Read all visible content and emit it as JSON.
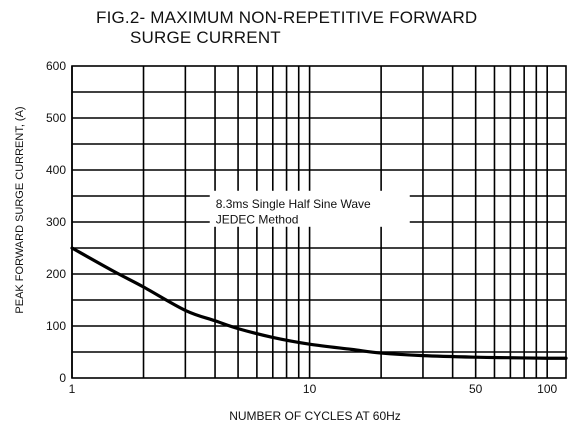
{
  "chart_data": {
    "type": "line",
    "title_line1": "FIG.2- MAXIMUM NON-REPETITIVE FORWARD",
    "title_line2": "SURGE CURRENT",
    "xlabel": "NUMBER OF CYCLES AT 60Hz",
    "ylabel": "PEAK FORWARD SURGE CURRENT, (A)",
    "x_scale": "log",
    "xlim": [
      1,
      120
    ],
    "ylim": [
      0,
      600
    ],
    "x_ticks": [
      1,
      10,
      50,
      100
    ],
    "y_ticks": [
      0,
      100,
      200,
      300,
      400,
      500,
      600
    ],
    "grid": true,
    "annotation_line1": "8.3ms Single Half Sine Wave",
    "annotation_line2": "JEDEC Method",
    "series": [
      {
        "x": [
          1,
          1.5,
          2,
          3,
          4,
          5,
          7,
          10,
          15,
          20,
          30,
          50,
          70,
          100,
          120
        ],
        "y": [
          250,
          205,
          175,
          130,
          110,
          95,
          78,
          65,
          55,
          48,
          43,
          40,
          39,
          38,
          38
        ]
      }
    ],
    "colors": {
      "line": "#000000",
      "grid": "#000000"
    }
  }
}
